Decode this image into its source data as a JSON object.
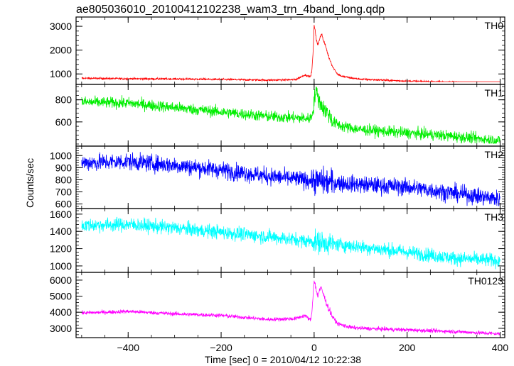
{
  "chart_data": {
    "type": "line",
    "title": "ae805036010_20100412102238_wam3_trn_4band_long.qdp",
    "xlabel": "Time [sec] 0 = 2010/04/12 10:22:38",
    "ylabel": "Counts/sec",
    "xlim": [
      -512,
      410
    ],
    "xticks": [
      -400,
      -200,
      0,
      200,
      400
    ],
    "grid": false,
    "panels": [
      {
        "name": "TH0",
        "color": "#ff0000",
        "ylim": [
          650,
          3300
        ],
        "yticks": [
          1000,
          2000,
          3000
        ],
        "noise": 20,
        "series": {
          "x": [
            -500,
            -450,
            -400,
            -300,
            -200,
            -100,
            -40,
            -20,
            -8,
            -5,
            -2,
            0,
            2,
            5,
            8,
            12,
            16,
            20,
            25,
            30,
            40,
            50,
            60,
            80,
            100,
            200,
            300,
            400
          ],
          "y": [
            820,
            810,
            800,
            790,
            770,
            740,
            760,
            960,
            880,
            1100,
            2000,
            3000,
            2900,
            2400,
            2200,
            2500,
            2700,
            2400,
            2150,
            1800,
            1300,
            1000,
            900,
            830,
            780,
            700,
            660,
            560
          ]
        }
      },
      {
        "name": "TH1",
        "color": "#00ee00",
        "ylim": [
          400,
          920
        ],
        "yticks": [
          600,
          800
        ],
        "noise": 25,
        "series": {
          "x": [
            -500,
            -400,
            -300,
            -200,
            -100,
            -10,
            -5,
            0,
            2,
            5,
            10,
            20,
            30,
            40,
            60,
            100,
            200,
            300,
            400
          ],
          "y": [
            780,
            770,
            730,
            690,
            650,
            630,
            650,
            780,
            850,
            880,
            800,
            720,
            680,
            600,
            560,
            530,
            500,
            470,
            430
          ]
        }
      },
      {
        "name": "TH2",
        "color": "#0000ff",
        "ylim": [
          580,
          1060
        ],
        "yticks": [
          600,
          700,
          800,
          900,
          1000
        ],
        "noise": 35,
        "series": {
          "x": [
            -500,
            -400,
            -300,
            -200,
            -100,
            0,
            100,
            200,
            300,
            400
          ],
          "y": [
            940,
            950,
            920,
            880,
            830,
            790,
            760,
            740,
            690,
            640
          ]
        }
      },
      {
        "name": "TH3",
        "color": "#00ffff",
        "ylim": [
          950,
          1640
        ],
        "yticks": [
          1000,
          1200,
          1400,
          1600
        ],
        "noise": 40,
        "series": {
          "x": [
            -500,
            -400,
            -300,
            -200,
            -100,
            0,
            100,
            200,
            300,
            400
          ],
          "y": [
            1470,
            1480,
            1440,
            1390,
            1340,
            1280,
            1220,
            1160,
            1090,
            1060
          ]
        }
      },
      {
        "name": "TH0123",
        "color": "#ff00ff",
        "ylim": [
          2550,
          6350
        ],
        "yticks": [
          3000,
          4000,
          5000,
          6000
        ],
        "noise": 60,
        "series": {
          "x": [
            -500,
            -450,
            -400,
            -300,
            -200,
            -100,
            -40,
            -20,
            -8,
            -5,
            -2,
            0,
            2,
            5,
            8,
            12,
            16,
            20,
            25,
            30,
            40,
            50,
            60,
            80,
            100,
            200,
            300,
            400
          ],
          "y": [
            3950,
            4000,
            4050,
            3900,
            3800,
            3550,
            3600,
            3800,
            3500,
            3900,
            5200,
            6000,
            5800,
            5300,
            5000,
            5400,
            5500,
            5100,
            4700,
            4300,
            3700,
            3300,
            3200,
            3050,
            3000,
            2900,
            2800,
            2650
          ]
        }
      }
    ]
  }
}
